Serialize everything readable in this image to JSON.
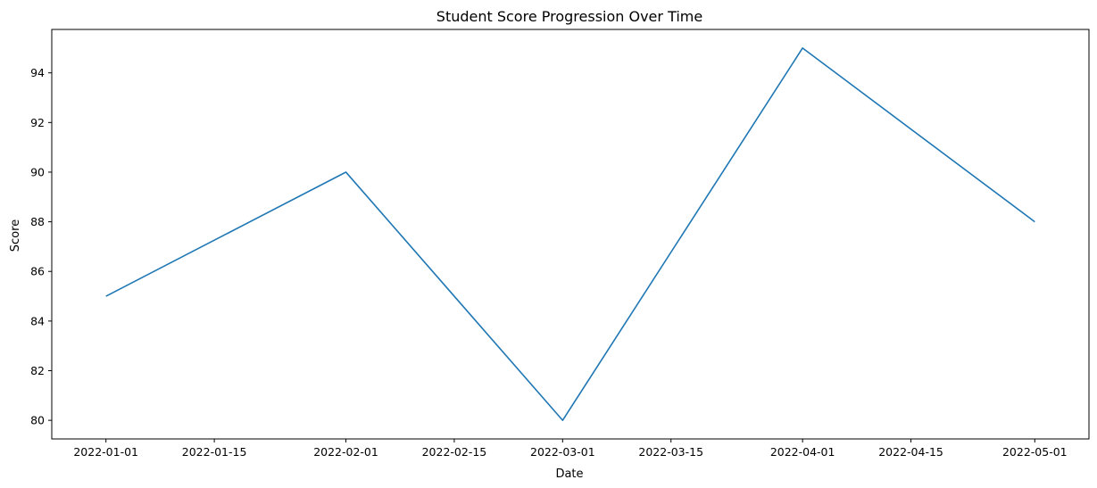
{
  "chart_data": {
    "type": "line",
    "title": "Student Score Progression Over Time",
    "xlabel": "Date",
    "ylabel": "Score",
    "x": [
      "2022-01-01",
      "2022-02-01",
      "2022-03-01",
      "2022-04-01",
      "2022-05-01"
    ],
    "series": [
      {
        "values": [
          85,
          90,
          80,
          95,
          88
        ],
        "color": "#1f77b4"
      }
    ],
    "x_ticks": [
      "2022-01-01",
      "2022-01-15",
      "2022-02-01",
      "2022-02-15",
      "2022-03-01",
      "2022-03-15",
      "2022-04-01",
      "2022-04-15",
      "2022-05-01"
    ],
    "y_ticks": [
      80,
      82,
      84,
      86,
      88,
      90,
      92,
      94
    ],
    "xlim": [
      "2021-12-25",
      "2022-05-08"
    ],
    "ylim": [
      79.25,
      95.75
    ],
    "grid": false,
    "legend": "none"
  }
}
